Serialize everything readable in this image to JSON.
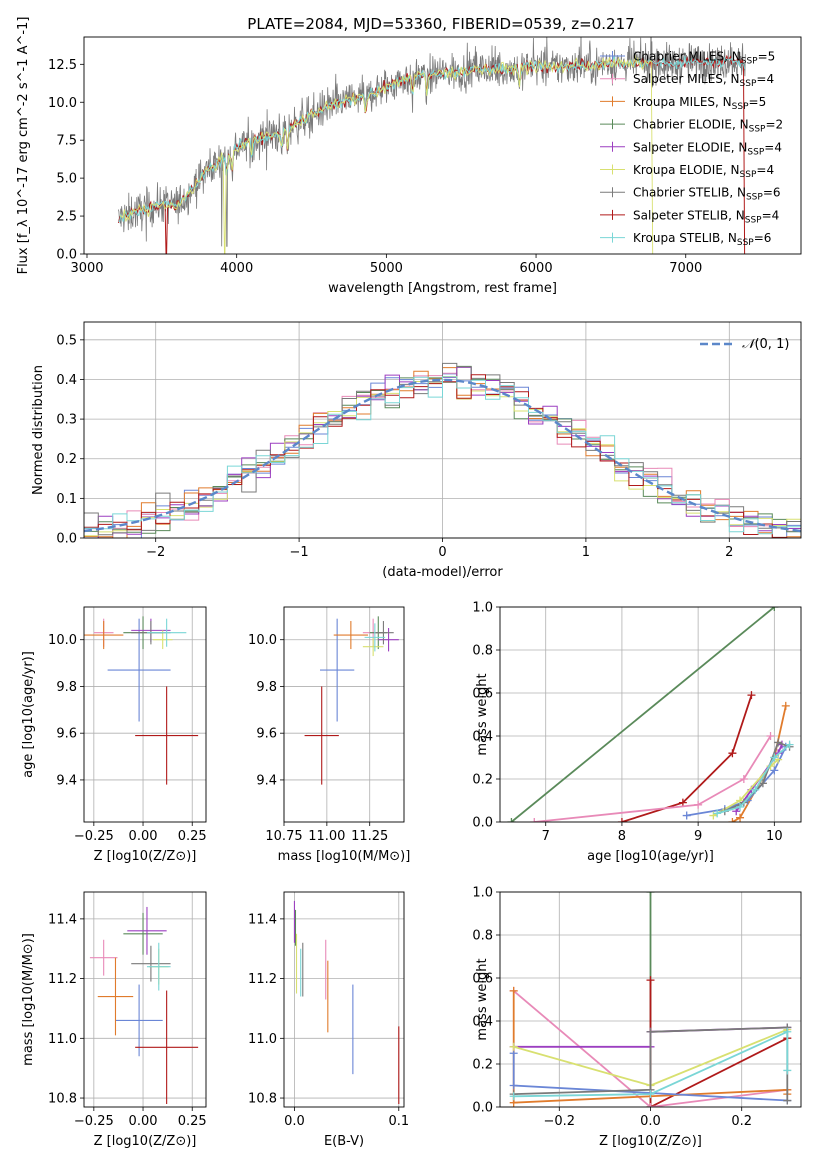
{
  "figure": {
    "title": "PLATE=2084, MJD=53360, FIBERID=0539, z=0.217"
  },
  "colors": {
    "chabrier_miles": "#6a86d6",
    "salpeter_miles": "#e88ab8",
    "kroupa_miles": "#e07b2c",
    "chabrier_elodie": "#5a8a5a",
    "salpeter_elodie": "#9c3fc0",
    "kroupa_elodie": "#d8e070",
    "chabrier_stelib": "#7a7a7a",
    "salpeter_stelib": "#b01a1a",
    "kroupa_stelib": "#7ad6d6"
  },
  "chart_data": [
    {
      "id": "spectrum",
      "type": "line",
      "title": "PLATE=2084, MJD=53360, FIBERID=0539, z=0.217",
      "xlabel": "wavelength [Angstrom, rest frame]",
      "ylabel": "Flux [f_λ 10^-17 erg cm^-2 s^-1 A^-1]",
      "xlim": [
        2980,
        7770
      ],
      "ylim": [
        0,
        14.3
      ],
      "xticks": [
        3000,
        4000,
        5000,
        6000,
        7000
      ],
      "yticks": [
        0.0,
        2.5,
        5.0,
        7.5,
        10.0,
        12.5
      ],
      "legend_position": "top-right",
      "legend": [
        "Chabrier MILES, N_SSP=5",
        "Salpeter MILES, N_SSP=4",
        "Kroupa MILES, N_SSP=5",
        "Chabrier ELODIE, N_SSP=2",
        "Salpeter ELODIE, N_SSP=4",
        "Kroupa ELODIE, N_SSP=4",
        "Chabrier STELIB, N_SSP=6",
        "Salpeter STELIB, N_SSP=4",
        "Kroupa STELIB, N_SSP=6"
      ],
      "continuum": {
        "x": [
          3210,
          3300,
          3400,
          3500,
          3600,
          3700,
          3800,
          3900,
          4000,
          4100,
          4200,
          4300,
          4400,
          4500,
          4600,
          4700,
          4800,
          4900,
          5000,
          5100,
          5200,
          5300,
          5400,
          5500,
          5600,
          5700,
          5800,
          5900,
          6000,
          6100,
          6200,
          6300,
          6400,
          6500,
          6600,
          6700,
          6800,
          6900,
          7000,
          7100,
          7200,
          7300,
          7400
        ],
        "y": [
          2.3,
          2.7,
          3.0,
          3.3,
          3.2,
          4.2,
          5.5,
          6.2,
          7.0,
          7.5,
          7.7,
          8.0,
          8.6,
          9.2,
          9.6,
          10.0,
          10.3,
          10.6,
          11.0,
          11.5,
          11.7,
          11.8,
          12.0,
          12.0,
          12.2,
          12.1,
          12.2,
          12.3,
          12.4,
          12.3,
          12.4,
          12.5,
          12.4,
          12.6,
          12.5,
          12.6,
          12.6,
          12.5,
          12.6,
          12.7,
          12.6,
          12.8,
          12.6
        ]
      }
    },
    {
      "id": "residuals",
      "type": "bar",
      "xlabel": "(data-model)/error",
      "ylabel": "Normed distribution",
      "xlim": [
        -2.5,
        2.5
      ],
      "ylim": [
        0,
        0.545
      ],
      "xticks": [
        -2,
        -1,
        0,
        1,
        2
      ],
      "yticks": [
        0.0,
        0.1,
        0.2,
        0.3,
        0.4,
        0.5
      ],
      "legend_position": "top-right",
      "legend": [
        "N(0,1)"
      ],
      "bin_width": 0.1,
      "reference_curve": "N(0,1)"
    },
    {
      "id": "age_vs_Z",
      "type": "scatter",
      "xlabel": "Z [log10(Z/Z⊙)]",
      "ylabel": "age  [log10(age/yr)]",
      "xlim": [
        -0.3,
        0.32
      ],
      "ylim": [
        9.22,
        10.14
      ],
      "xticks": [
        -0.25,
        0.0,
        0.25
      ],
      "yticks": [
        9.4,
        9.6,
        9.8,
        10.0
      ],
      "points": [
        {
          "series": "Chabrier MILES",
          "x": -0.02,
          "xerr": 0.16,
          "y": 9.87,
          "yerr": 0.22
        },
        {
          "series": "Salpeter MILES",
          "x": -0.2,
          "xerr": 0.05,
          "y": 10.03,
          "yerr": 0.06
        },
        {
          "series": "Kroupa MILES",
          "x": -0.2,
          "xerr": 0.1,
          "y": 10.02,
          "yerr": 0.06
        },
        {
          "series": "Chabrier ELODIE",
          "x": 0.0,
          "xerr": 0.1,
          "y": 10.03,
          "yerr": 0.07
        },
        {
          "series": "Salpeter ELODIE",
          "x": 0.04,
          "xerr": 0.1,
          "y": 10.04,
          "yerr": 0.05
        },
        {
          "series": "Kroupa ELODIE",
          "x": 0.1,
          "xerr": 0.05,
          "y": 10.0,
          "yerr": 0.04
        },
        {
          "series": "Chabrier STELIB",
          "x": 0.04,
          "xerr": 0.1,
          "y": 10.03,
          "yerr": 0.05
        },
        {
          "series": "Salpeter STELIB",
          "x": 0.12,
          "xerr": 0.16,
          "y": 9.59,
          "yerr": 0.21
        },
        {
          "series": "Kroupa STELIB",
          "x": 0.12,
          "xerr": 0.1,
          "y": 10.03,
          "yerr": 0.06
        }
      ]
    },
    {
      "id": "age_vs_mass",
      "type": "scatter",
      "xlabel": "mass [log10(M/M⊙)]",
      "ylabel": "",
      "xlim": [
        10.75,
        11.45
      ],
      "ylim": [
        9.22,
        10.14
      ],
      "xticks": [
        10.75,
        11.0,
        11.25
      ],
      "yticks": [
        9.4,
        9.6,
        9.8,
        10.0
      ],
      "points": [
        {
          "series": "Chabrier MILES",
          "x": 11.06,
          "xerr": 0.1,
          "y": 9.87,
          "yerr": 0.22
        },
        {
          "series": "Salpeter MILES",
          "x": 11.27,
          "xerr": 0.06,
          "y": 10.03,
          "yerr": 0.06
        },
        {
          "series": "Kroupa MILES",
          "x": 11.14,
          "xerr": 0.1,
          "y": 10.02,
          "yerr": 0.06
        },
        {
          "series": "Chabrier ELODIE",
          "x": 11.3,
          "xerr": 0.05,
          "y": 10.03,
          "yerr": 0.07
        },
        {
          "series": "Salpeter ELODIE",
          "x": 11.36,
          "xerr": 0.06,
          "y": 10.0,
          "yerr": 0.05
        },
        {
          "series": "Kroupa ELODIE",
          "x": 11.27,
          "xerr": 0.06,
          "y": 9.97,
          "yerr": 0.04
        },
        {
          "series": "Chabrier STELIB",
          "x": 11.33,
          "xerr": 0.06,
          "y": 10.03,
          "yerr": 0.05
        },
        {
          "series": "Salpeter STELIB",
          "x": 10.97,
          "xerr": 0.1,
          "y": 9.59,
          "yerr": 0.21
        },
        {
          "series": "Kroupa STELIB",
          "x": 11.28,
          "xerr": 0.06,
          "y": 10.01,
          "yerr": 0.06
        }
      ]
    },
    {
      "id": "massweight_vs_age",
      "type": "line",
      "xlabel": "age  [log10(age/yr)]",
      "ylabel": "mass weight",
      "xlim": [
        6.4,
        10.35
      ],
      "ylim": [
        0,
        1.0
      ],
      "xticks": [
        7,
        8,
        9,
        10
      ],
      "yticks": [
        0.0,
        0.2,
        0.4,
        0.6,
        0.8,
        1.0
      ],
      "series": [
        {
          "name": "Chabrier ELODIE",
          "x": [
            6.55,
            10.0
          ],
          "y": [
            0.0,
            1.0
          ]
        },
        {
          "name": "Salpeter STELIB",
          "x": [
            8.0,
            8.8,
            9.45,
            9.7
          ],
          "y": [
            0.0,
            0.09,
            0.32,
            0.59
          ]
        },
        {
          "name": "Salpeter MILES",
          "x": [
            6.85,
            9.0,
            9.6,
            9.95
          ],
          "y": [
            0.0,
            0.08,
            0.2,
            0.4
          ]
        },
        {
          "name": "Kroupa MILES",
          "x": [
            9.45,
            9.55,
            10.0,
            10.15
          ],
          "y": [
            0.0,
            0.02,
            0.3,
            0.54
          ]
        },
        {
          "name": "Chabrier MILES",
          "x": [
            8.85,
            9.35,
            9.65,
            10.0,
            10.15
          ],
          "y": [
            0.03,
            0.06,
            0.1,
            0.24,
            0.35
          ]
        },
        {
          "name": "Salpeter ELODIE",
          "x": [
            9.5,
            9.7,
            10.05,
            10.1
          ],
          "y": [
            0.05,
            0.15,
            0.32,
            0.36
          ]
        },
        {
          "name": "Kroupa ELODIE",
          "x": [
            9.2,
            9.55,
            9.95,
            10.05
          ],
          "y": [
            0.03,
            0.1,
            0.26,
            0.29
          ]
        },
        {
          "name": "Chabrier STELIB",
          "x": [
            9.35,
            9.6,
            9.85,
            10.05,
            10.2
          ],
          "y": [
            0.05,
            0.09,
            0.18,
            0.37,
            0.35
          ]
        },
        {
          "name": "Kroupa STELIB",
          "x": [
            9.25,
            9.55,
            9.75,
            10.0,
            10.2
          ],
          "y": [
            0.04,
            0.07,
            0.15,
            0.3,
            0.36
          ]
        }
      ]
    },
    {
      "id": "mass_vs_Z",
      "type": "scatter",
      "xlabel": "Z [log10(Z/Z⊙)]",
      "ylabel": "mass [log10(M/M⊙)]",
      "xlim": [
        -0.3,
        0.32
      ],
      "ylim": [
        10.77,
        11.49
      ],
      "xticks": [
        -0.25,
        0.0,
        0.25
      ],
      "yticks": [
        10.8,
        11.0,
        11.2,
        11.4
      ],
      "points": [
        {
          "series": "Chabrier MILES",
          "x": -0.02,
          "xerr": 0.12,
          "y": 11.06,
          "yerr": 0.12
        },
        {
          "series": "Salpeter MILES",
          "x": -0.2,
          "xerr": 0.07,
          "y": 11.27,
          "yerr": 0.06
        },
        {
          "series": "Kroupa MILES",
          "x": -0.14,
          "xerr": 0.09,
          "y": 11.14,
          "yerr": 0.13
        },
        {
          "series": "Chabrier ELODIE",
          "x": 0.0,
          "xerr": 0.1,
          "y": 11.35,
          "yerr": 0.07
        },
        {
          "series": "Salpeter ELODIE",
          "x": 0.02,
          "xerr": 0.1,
          "y": 11.36,
          "yerr": 0.08
        },
        {
          "series": "Kroupa ELODIE",
          "x": 0.08,
          "xerr": 0.05,
          "y": 11.24,
          "yerr": 0.06
        },
        {
          "series": "Chabrier STELIB",
          "x": 0.04,
          "xerr": 0.1,
          "y": 11.25,
          "yerr": 0.06
        },
        {
          "series": "Salpeter STELIB",
          "x": 0.12,
          "xerr": 0.16,
          "y": 10.97,
          "yerr": 0.19
        },
        {
          "series": "Kroupa STELIB",
          "x": 0.08,
          "xerr": 0.06,
          "y": 11.24,
          "yerr": 0.08
        }
      ]
    },
    {
      "id": "mass_vs_ebv",
      "type": "scatter",
      "xlabel": "E(B-V)",
      "ylabel": "",
      "xlim": [
        -0.01,
        0.105
      ],
      "ylim": [
        10.77,
        11.49
      ],
      "xticks": [
        0.0,
        0.1
      ],
      "yticks": [
        10.8,
        11.0,
        11.2,
        11.4
      ],
      "points": [
        {
          "series": "Chabrier MILES",
          "x": 0.056,
          "y": 11.03,
          "yerr": 0.15
        },
        {
          "series": "Salpeter MILES",
          "x": 0.03,
          "y": 11.23,
          "yerr": 0.1
        },
        {
          "series": "Kroupa MILES",
          "x": 0.032,
          "y": 11.14,
          "yerr": 0.12
        },
        {
          "series": "Chabrier ELODIE",
          "x": 0.001,
          "y": 11.37,
          "yerr": 0.06
        },
        {
          "series": "Salpeter ELODIE",
          "x": 0.0,
          "y": 11.39,
          "yerr": 0.07
        },
        {
          "series": "Kroupa ELODIE",
          "x": 0.002,
          "y": 11.25,
          "yerr": 0.1
        },
        {
          "series": "Chabrier STELIB",
          "x": 0.008,
          "y": 11.23,
          "yerr": 0.09
        },
        {
          "series": "Salpeter STELIB",
          "x": 0.1,
          "y": 10.91,
          "yerr": 0.13
        },
        {
          "series": "Kroupa STELIB",
          "x": 0.006,
          "y": 11.22,
          "yerr": 0.08
        }
      ]
    },
    {
      "id": "massweight_vs_Z",
      "type": "line",
      "xlabel": "Z [log10(Z/Z⊙)]",
      "ylabel": "mass weight",
      "xlim": [
        -0.33,
        0.33
      ],
      "ylim": [
        0,
        1.0
      ],
      "xticks": [
        -0.2,
        0.0,
        0.2
      ],
      "yticks": [
        0.0,
        0.2,
        0.4,
        0.6,
        0.8,
        1.0
      ],
      "series": [
        {
          "name": "Chabrier ELODIE",
          "x": [
            0.0,
            0.0
          ],
          "y": [
            0.0,
            1.0
          ]
        },
        {
          "name": "Salpeter STELIB",
          "x": [
            0.0,
            0.0,
            0.3
          ],
          "y": [
            0.59,
            0.0,
            0.32
          ]
        },
        {
          "name": "Salpeter MILES",
          "x": [
            -0.3,
            0.0,
            0.3
          ],
          "y": [
            0.54,
            0.0,
            0.08
          ]
        },
        {
          "name": "Kroupa MILES",
          "x": [
            -0.3,
            -0.3,
            0.3,
            0.3
          ],
          "y": [
            0.54,
            0.02,
            0.08,
            0.06
          ]
        },
        {
          "name": "Chabrier MILES",
          "x": [
            -0.3,
            -0.3,
            0.3
          ],
          "y": [
            0.25,
            0.1,
            0.03
          ]
        },
        {
          "name": "Salpeter ELODIE",
          "x": [
            -0.3,
            0.0,
            0.0,
            0.3
          ],
          "y": [
            0.28,
            0.28,
            0.35,
            0.37
          ]
        },
        {
          "name": "Kroupa ELODIE",
          "x": [
            -0.3,
            0.0,
            0.3
          ],
          "y": [
            0.28,
            0.1,
            0.36
          ]
        },
        {
          "name": "Chabrier STELIB",
          "x": [
            -0.3,
            0.0,
            0.0,
            0.3,
            0.3
          ],
          "y": [
            0.06,
            0.08,
            0.35,
            0.37,
            0.03
          ]
        },
        {
          "name": "Kroupa STELIB",
          "x": [
            -0.3,
            0.0,
            0.3,
            0.3
          ],
          "y": [
            0.05,
            0.06,
            0.35,
            0.17
          ]
        }
      ]
    }
  ]
}
